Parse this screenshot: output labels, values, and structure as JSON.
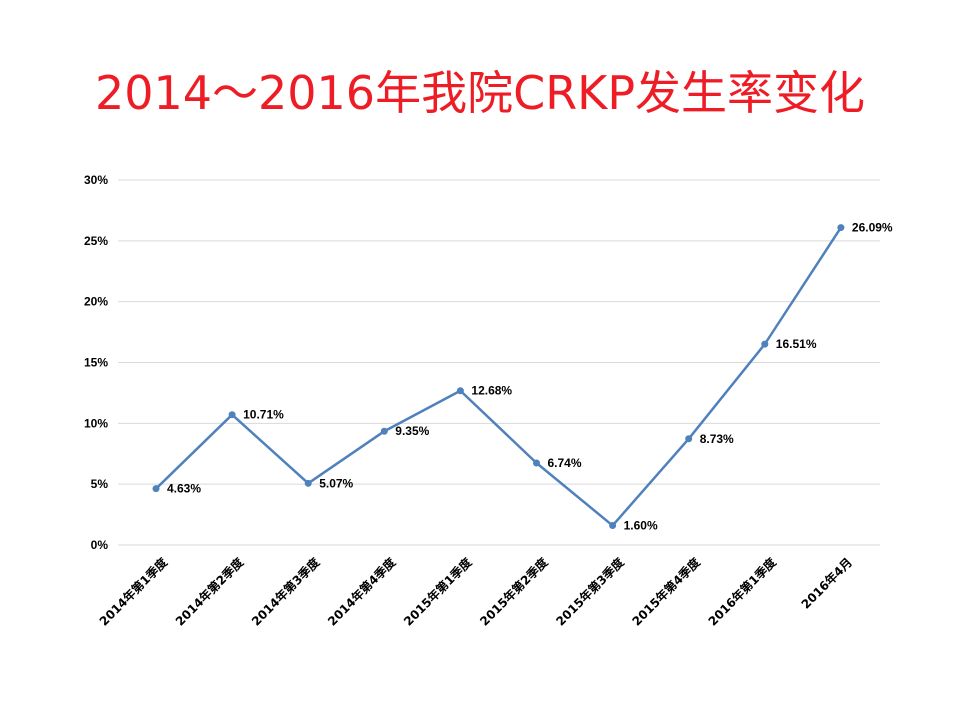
{
  "chart_data": {
    "type": "line",
    "title": "2014～2016年我院CRKP发生率变化",
    "categories": [
      "2014年第1季度",
      "2014年第2季度",
      "2014年第3季度",
      "2014年第4季度",
      "2015年第1季度",
      "2015年第2季度",
      "2015年第3季度",
      "2015年第4季度",
      "2016年第1季度",
      "2016年4月"
    ],
    "values": [
      4.63,
      10.71,
      5.07,
      9.35,
      12.68,
      6.74,
      1.6,
      8.73,
      16.51,
      26.09
    ],
    "data_labels": [
      "4.63%",
      "10.71%",
      "5.07%",
      "9.35%",
      "12.68%",
      "6.74%",
      "1.60%",
      "8.73%",
      "16.51%",
      "26.09%"
    ],
    "y_ticks": [
      0,
      5,
      10,
      15,
      20,
      25,
      30
    ],
    "y_tick_labels": [
      "0%",
      "5%",
      "10%",
      "15%",
      "20%",
      "25%",
      "30%"
    ],
    "ylim": [
      0,
      30
    ],
    "xlabel": "",
    "ylabel": "",
    "grid": true,
    "legend": "none",
    "colors": {
      "line": "#4f81bd",
      "grid": "#d9d9d9",
      "title": "#ee1c25"
    }
  }
}
